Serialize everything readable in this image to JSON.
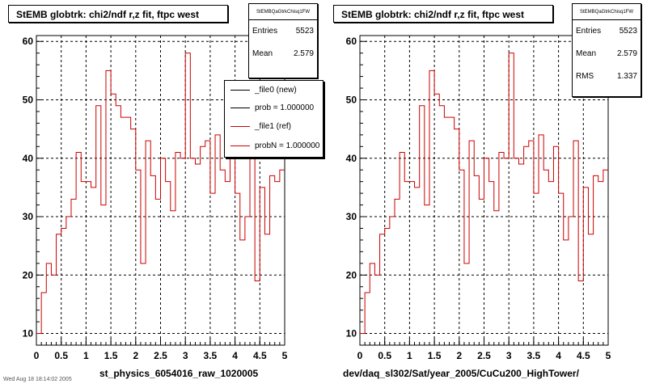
{
  "chart_data": [
    {
      "type": "step",
      "title": "StEMB globtrk: chi2/ndf r,z fit, ftpc west",
      "xlabel": "st_physics_6054016_raw_1020005",
      "ylabel": "",
      "xlim": [
        0,
        5
      ],
      "ylim": [
        8,
        61
      ],
      "x_ticks": [
        "0",
        "0.5",
        "1",
        "1.5",
        "2",
        "2.5",
        "3",
        "3.5",
        "4",
        "4.5",
        "5"
      ],
      "y_ticks": [
        "10",
        "20",
        "30",
        "40",
        "50",
        "60"
      ],
      "grid": true,
      "stats": {
        "name": "StEMBQaGtrkChisq1FW",
        "rows": [
          {
            "label": "Entries",
            "value": "5523"
          },
          {
            "label": "Mean",
            "value": "2.579"
          }
        ]
      },
      "legend": {
        "position": "top-right",
        "entries": [
          {
            "label": "_file0 (new)",
            "color": "#000000"
          },
          {
            "label": "prob = 1.000000",
            "color": "#000000"
          },
          {
            "label": "_file1 (ref)",
            "color": "#cc0000"
          },
          {
            "label": "probN = 1.000000",
            "color": "#cc0000"
          }
        ]
      },
      "series": [
        {
          "color": "#cc0000",
          "bin_edges": [
            0,
            0.1,
            0.2,
            0.3,
            0.4,
            0.5,
            0.6,
            0.7,
            0.8,
            0.9,
            1.0,
            1.1,
            1.2,
            1.3,
            1.4,
            1.5,
            1.6,
            1.7,
            1.8,
            1.9,
            2.0,
            2.1,
            2.2,
            2.3,
            2.4,
            2.5,
            2.6,
            2.7,
            2.8,
            2.9,
            3.0,
            3.1,
            3.2,
            3.3,
            3.4,
            3.5,
            3.6,
            3.7,
            3.8,
            3.9,
            4.0,
            4.1,
            4.2,
            4.3,
            4.4,
            4.5,
            4.6,
            4.7,
            4.8,
            4.9,
            5.0
          ],
          "values": [
            10,
            17,
            22,
            20,
            27,
            28,
            30,
            33,
            41,
            36,
            36,
            35,
            49,
            32,
            55,
            51,
            49,
            47,
            47,
            45,
            38,
            22,
            43,
            37,
            33,
            40,
            36,
            31,
            41,
            40,
            58,
            40,
            39,
            42,
            43,
            34,
            44,
            38,
            36,
            42,
            34,
            26,
            30,
            43,
            19,
            35,
            27,
            37,
            36,
            38
          ]
        }
      ]
    },
    {
      "type": "step",
      "title": "StEMB globtrk: chi2/ndf r,z fit, ftpc west",
      "xlabel": "dev/daq_sl302/Sat/year_2005/CuCu200_HighTower/",
      "ylabel": "",
      "xlim": [
        0,
        5
      ],
      "ylim": [
        8,
        61
      ],
      "x_ticks": [
        "0",
        "0.5",
        "1",
        "1.5",
        "2",
        "2.5",
        "3",
        "3.5",
        "4",
        "4.5",
        "5"
      ],
      "y_ticks": [
        "10",
        "20",
        "30",
        "40",
        "50",
        "60"
      ],
      "grid": true,
      "stats": {
        "name": "StEMBQaGtrkChisq1FW",
        "rows": [
          {
            "label": "Entries",
            "value": "5523"
          },
          {
            "label": "Mean",
            "value": "2.579"
          },
          {
            "label": "RMS",
            "value": "1.337"
          }
        ]
      },
      "series": [
        {
          "color": "#cc0000",
          "bin_edges": [
            0,
            0.1,
            0.2,
            0.3,
            0.4,
            0.5,
            0.6,
            0.7,
            0.8,
            0.9,
            1.0,
            1.1,
            1.2,
            1.3,
            1.4,
            1.5,
            1.6,
            1.7,
            1.8,
            1.9,
            2.0,
            2.1,
            2.2,
            2.3,
            2.4,
            2.5,
            2.6,
            2.7,
            2.8,
            2.9,
            3.0,
            3.1,
            3.2,
            3.3,
            3.4,
            3.5,
            3.6,
            3.7,
            3.8,
            3.9,
            4.0,
            4.1,
            4.2,
            4.3,
            4.4,
            4.5,
            4.6,
            4.7,
            4.8,
            4.9,
            5.0
          ],
          "values": [
            10,
            17,
            22,
            20,
            27,
            28,
            30,
            33,
            41,
            36,
            36,
            35,
            49,
            32,
            55,
            51,
            49,
            47,
            47,
            45,
            38,
            22,
            43,
            37,
            33,
            40,
            36,
            31,
            41,
            40,
            58,
            40,
            39,
            42,
            43,
            34,
            44,
            38,
            36,
            42,
            34,
            26,
            30,
            43,
            19,
            35,
            27,
            37,
            36,
            38
          ]
        }
      ]
    }
  ],
  "footer": "Wed Aug 18 18:14:02 2005"
}
